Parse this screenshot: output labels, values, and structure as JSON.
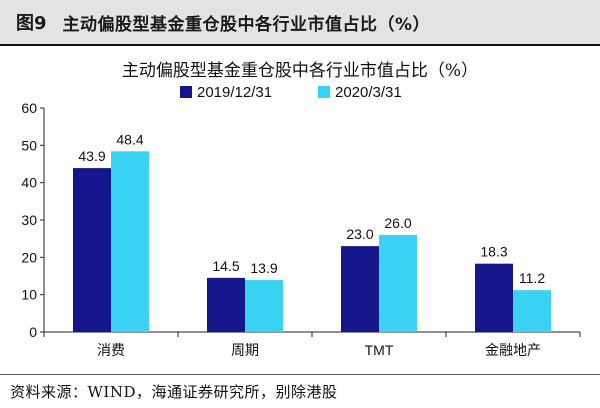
{
  "figure": {
    "label": "图9",
    "title": "主动偏股型基金重仓股中各行业市值占比（%）"
  },
  "source": "资料来源：WIND，海通证券研究所，别除港股",
  "colors": {
    "series_2019": "#15158c",
    "series_2020": "#3ad2f2",
    "header_bg": "#e3e3e3",
    "axis": "#222222"
  },
  "chart_data": {
    "type": "bar",
    "title": "主动偏股型基金重仓股中各行业市值占比（%）",
    "categories": [
      "消费",
      "周期",
      "TMT",
      "金融地产"
    ],
    "series": [
      {
        "name": "2019/12/31",
        "values": [
          43.9,
          14.5,
          23.0,
          18.3
        ],
        "labels": [
          "43.9",
          "14.5",
          "23.0",
          "18.3"
        ]
      },
      {
        "name": "2020/3/31",
        "values": [
          48.4,
          13.9,
          26.0,
          11.2
        ],
        "labels": [
          "48.4",
          "13.9",
          "26.0",
          "11.2"
        ]
      }
    ],
    "ylim": [
      0,
      60
    ],
    "yticks": [
      0,
      10,
      20,
      30,
      40,
      50,
      60
    ],
    "xlabel": "",
    "ylabel": "",
    "legend": "top",
    "grid": false
  }
}
